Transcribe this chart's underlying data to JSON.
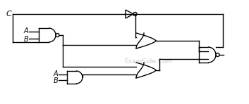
{
  "bg_color": "#ffffff",
  "line_color": "#000000",
  "watermark_color": "#bbbbbb",
  "watermark_text": "ExamSide.Com",
  "label_C": "C",
  "label_A1": "A",
  "label_B1": "B",
  "label_A2": "A",
  "label_B2": "B",
  "figsize": [
    3.53,
    1.48
  ],
  "dpi": 100
}
